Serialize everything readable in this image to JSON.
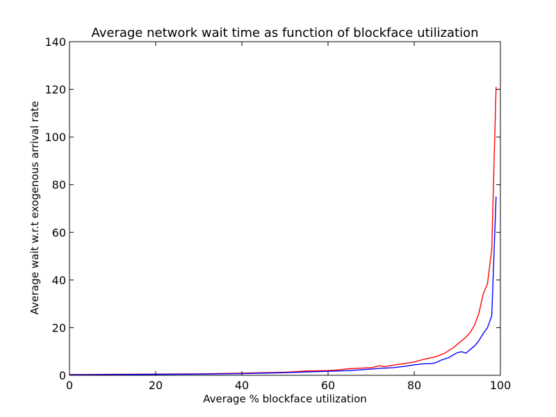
{
  "chart_data": {
    "type": "line",
    "title": "Average network wait time as function of blockface utilization",
    "xlabel": "Average % blockface utilization",
    "ylabel": "Average wait w.r.t exogenous arrival rate",
    "xlim": [
      0,
      100
    ],
    "ylim": [
      0,
      140
    ],
    "xticks": [
      0,
      20,
      40,
      60,
      80,
      100
    ],
    "yticks": [
      0,
      20,
      40,
      60,
      80,
      100,
      120,
      140
    ],
    "grid": false,
    "legend": "none",
    "series": [
      {
        "color": "#ff0000",
        "points": [
          [
            0,
            0.3
          ],
          [
            10,
            0.4
          ],
          [
            20,
            0.5
          ],
          [
            30,
            0.6
          ],
          [
            40,
            0.9
          ],
          [
            45,
            1.1
          ],
          [
            50,
            1.3
          ],
          [
            55,
            1.8
          ],
          [
            60,
            2.0
          ],
          [
            62,
            2.2
          ],
          [
            65,
            2.8
          ],
          [
            70,
            3.2
          ],
          [
            72,
            4.0
          ],
          [
            73,
            3.6
          ],
          [
            75,
            4.2
          ],
          [
            78,
            5.0
          ],
          [
            80,
            5.6
          ],
          [
            82,
            6.6
          ],
          [
            84,
            7.4
          ],
          [
            85,
            7.8
          ],
          [
            87,
            9.2
          ],
          [
            89,
            11.5
          ],
          [
            91,
            14.5
          ],
          [
            92,
            16.0
          ],
          [
            93,
            18.0
          ],
          [
            94,
            21.0
          ],
          [
            95,
            26.0
          ],
          [
            96,
            34.0
          ],
          [
            97,
            38.5
          ],
          [
            98,
            53.0
          ],
          [
            99,
            121.0
          ]
        ]
      },
      {
        "color": "#0000ff",
        "points": [
          [
            0,
            0.2
          ],
          [
            10,
            0.3
          ],
          [
            20,
            0.4
          ],
          [
            30,
            0.5
          ],
          [
            40,
            0.7
          ],
          [
            45,
            0.9
          ],
          [
            50,
            1.1
          ],
          [
            55,
            1.4
          ],
          [
            60,
            1.7
          ],
          [
            62,
            1.8
          ],
          [
            65,
            2.0
          ],
          [
            70,
            2.6
          ],
          [
            72,
            2.9
          ],
          [
            75,
            3.2
          ],
          [
            78,
            3.8
          ],
          [
            80,
            4.4
          ],
          [
            82,
            4.8
          ],
          [
            84,
            4.9
          ],
          [
            85,
            5.3
          ],
          [
            86,
            6.2
          ],
          [
            88,
            7.4
          ],
          [
            89,
            8.5
          ],
          [
            90,
            9.5
          ],
          [
            91,
            9.9
          ],
          [
            92,
            9.3
          ],
          [
            93,
            10.8
          ],
          [
            94,
            12.3
          ],
          [
            95,
            14.5
          ],
          [
            96,
            17.5
          ],
          [
            97,
            20.0
          ],
          [
            98,
            25.0
          ],
          [
            99,
            75.0
          ]
        ]
      }
    ]
  }
}
